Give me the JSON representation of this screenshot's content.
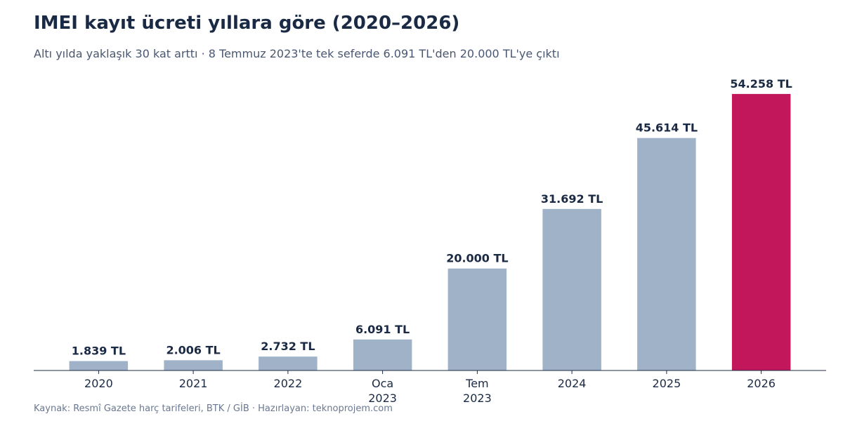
{
  "title": "IMEI kayıt ücreti yıllara göre (2020–2026)",
  "subtitle": "Altı yılda yaklaşık 30 kat arttı · 8 Temmuz 2023'te tek seferde 6.091 TL'den 20.000 TL'ye çıktı",
  "source": "Kaynak: Resmî Gazete harç tarifeleri, BTK / GİB · Hazırlayan: teknoprojem.com",
  "chart_data": {
    "type": "bar",
    "categories": [
      "2020",
      "2021",
      "2022",
      "Oca\n2023",
      "Tem\n2023",
      "2024",
      "2025",
      "2026"
    ],
    "values": [
      1839,
      2006,
      2732,
      6091,
      20000,
      31692,
      45614,
      54258
    ],
    "value_labels": [
      "1.839 TL",
      "2.006 TL",
      "2.732 TL",
      "6.091 TL",
      "20.000 TL",
      "31.692 TL",
      "45.614 TL",
      "54.258 TL"
    ],
    "title": "IMEI kayıt ücreti yıllara göre (2020–2026)",
    "xlabel": "",
    "ylabel": "",
    "ylim": [
      0,
      57000
    ],
    "grid": false,
    "colors": {
      "default": "#9fb2c7",
      "highlight": "#c2185b",
      "highlight_index": 7,
      "axis": "#1b2a44",
      "label": "#1b2a44"
    }
  }
}
